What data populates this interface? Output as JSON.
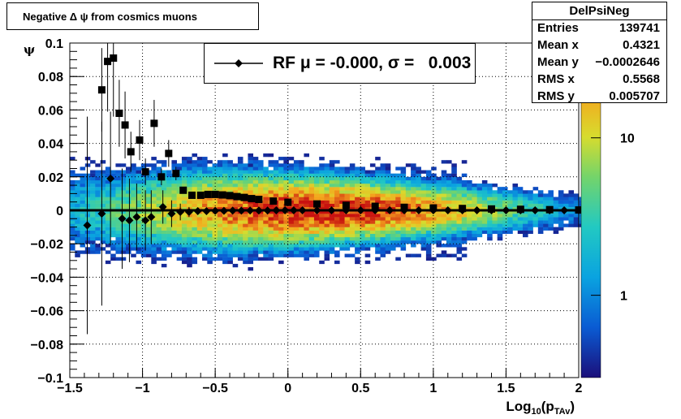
{
  "title": "Negative Δ ψ from cosmics muons",
  "stats": {
    "name": "DelPsiNeg",
    "rows": [
      {
        "label": "Entries",
        "value": "139741"
      },
      {
        "label": "Mean x",
        "value": "0.4321"
      },
      {
        "label": "Mean y",
        "value": "−0.0002646"
      },
      {
        "label": "RMS x",
        "value": "0.5568"
      },
      {
        "label": "RMS y",
        "value": "0.005707"
      }
    ]
  },
  "legend": {
    "entry": "RF μ = -0.000, σ =   0.003"
  },
  "colors": {
    "frame": "#000000",
    "grid": "#000000",
    "markers": "#000000"
  },
  "chart_data": {
    "type": "heatmap",
    "xlabel": "Log",
    "xlabel_sub1": "10",
    "xlabel_mid": "(p",
    "xlabel_sub2": "TAv",
    "xlabel_end": ")",
    "ylabel": "ψ",
    "xlim": [
      -1.5,
      2
    ],
    "ylim": [
      -0.1,
      0.1
    ],
    "xticks": [
      -1.5,
      -1,
      -0.5,
      0,
      0.5,
      1,
      1.5,
      2
    ],
    "xtick_labels": [
      "−1.5",
      "−1",
      "−0.5",
      "0",
      "0.5",
      "1",
      "1.5",
      "2"
    ],
    "yticks": [
      -0.1,
      -0.08,
      -0.06,
      -0.04,
      -0.02,
      0,
      0.02,
      0.04,
      0.06,
      0.08,
      0.1
    ],
    "ytick_labels": [
      "−0.1",
      "−0.08",
      "−0.06",
      "−0.04",
      "−0.02",
      "0",
      "0.02",
      "0.04",
      "0.06",
      "0.08",
      "0.1"
    ],
    "grid": true,
    "log_z": true,
    "colorbar_ticks": [
      1,
      10
    ],
    "colorbar_tick_labels": [
      "1",
      "10"
    ],
    "colorbar_range": [
      0.3,
      40
    ],
    "profile_squares": {
      "x": [
        -1.28,
        -1.24,
        -1.2,
        -1.16,
        -1.12,
        -1.08,
        -1.02,
        -0.98,
        -0.92,
        -0.87,
        -0.82,
        -0.77,
        -0.72,
        -0.66,
        -0.6,
        -0.55,
        -0.5,
        -0.45,
        -0.4,
        -0.35,
        -0.3,
        -0.25,
        -0.2,
        -0.1,
        0,
        0.2,
        0.4,
        0.6,
        0.8,
        1,
        1.2,
        1.4,
        1.6,
        1.8,
        2
      ],
      "y": [
        0.072,
        0.089,
        0.091,
        0.058,
        0.051,
        0.035,
        0.042,
        0.023,
        0.052,
        0.02,
        0.034,
        0.022,
        0.012,
        0.009,
        0.009,
        0.0095,
        0.0095,
        0.0092,
        0.0088,
        0.0082,
        0.0077,
        0.007,
        0.0065,
        0.0055,
        0.0048,
        0.0038,
        0.003,
        0.0024,
        0.0018,
        0.0014,
        0.0011,
        0.0008,
        0.0006,
        0.0004,
        0.0002
      ],
      "err": [
        0.025,
        0.03,
        0.035,
        0.02,
        0.02,
        0.012,
        0.012,
        0.008,
        0.014,
        0.005,
        0.008,
        0.004,
        0.002,
        0.001,
        0.0008,
        0.0008,
        0.0006,
        0.0005,
        0.0004,
        0.0004,
        0.0003,
        0.0003,
        0.0003,
        0.0002,
        0.0002,
        0.0002,
        0.0002,
        0.0002,
        0.0002,
        0.0002,
        0.0002,
        0.0002,
        0.0002,
        0.0002,
        0.0002
      ]
    },
    "gaussian_mean": {
      "x": [
        -1.38,
        -1.28,
        -1.22,
        -1.14,
        -1.09,
        -1.04,
        -0.98,
        -0.94,
        -0.86,
        -0.8,
        -0.74,
        -0.68,
        -0.62,
        -0.56,
        -0.5,
        -0.44,
        -0.38,
        -0.32,
        -0.26,
        -0.2,
        -0.14,
        -0.08,
        -0.02,
        0.04,
        0.1,
        0.2,
        0.3,
        0.4,
        0.5,
        0.6,
        0.7,
        0.8,
        0.9,
        1,
        1.1,
        1.2,
        1.3,
        1.4,
        1.5,
        1.6,
        1.7,
        1.8,
        1.9,
        2
      ],
      "y": [
        -0.009,
        -0.002,
        0.019,
        -0.005,
        -0.006,
        -0.004,
        -0.006,
        -0.004,
        0.002,
        -0.002,
        -0.001,
        -0.001,
        -0.0005,
        -0.0005,
        -0.0003,
        -0.0003,
        -0.0002,
        -0.0002,
        -0.0001,
        -0.0001,
        -0.0001,
        0,
        0,
        0,
        0,
        0,
        0,
        0,
        0,
        0,
        0,
        0,
        0,
        0,
        0,
        0,
        0,
        0,
        0,
        0,
        0,
        0,
        0,
        0
      ],
      "err": [
        0.065,
        0.055,
        0.04,
        0.03,
        0.025,
        0.02,
        0.018,
        0.016,
        0.01,
        0.008,
        0.005,
        0.003,
        0.002,
        0.0015,
        0.001,
        0.0008,
        0.0006,
        0.0005,
        0.0004,
        0.0004,
        0.0003,
        0.0003,
        0.0002,
        0.0002,
        0.0002,
        0.0002,
        0.0002,
        0.0002,
        0.0002,
        0.0002,
        0.0002,
        0.0002,
        0.0002,
        0.0002,
        0.0002,
        0.0002,
        0.0002,
        0.0002,
        0.0002,
        0.0002,
        0.0002,
        0.0002,
        0.0002,
        0.0002
      ]
    },
    "band": {
      "x_start": -1.5,
      "x_end": 2,
      "peak_x": 0.2,
      "sigma_y": 0.006,
      "peak_count": 40
    }
  }
}
